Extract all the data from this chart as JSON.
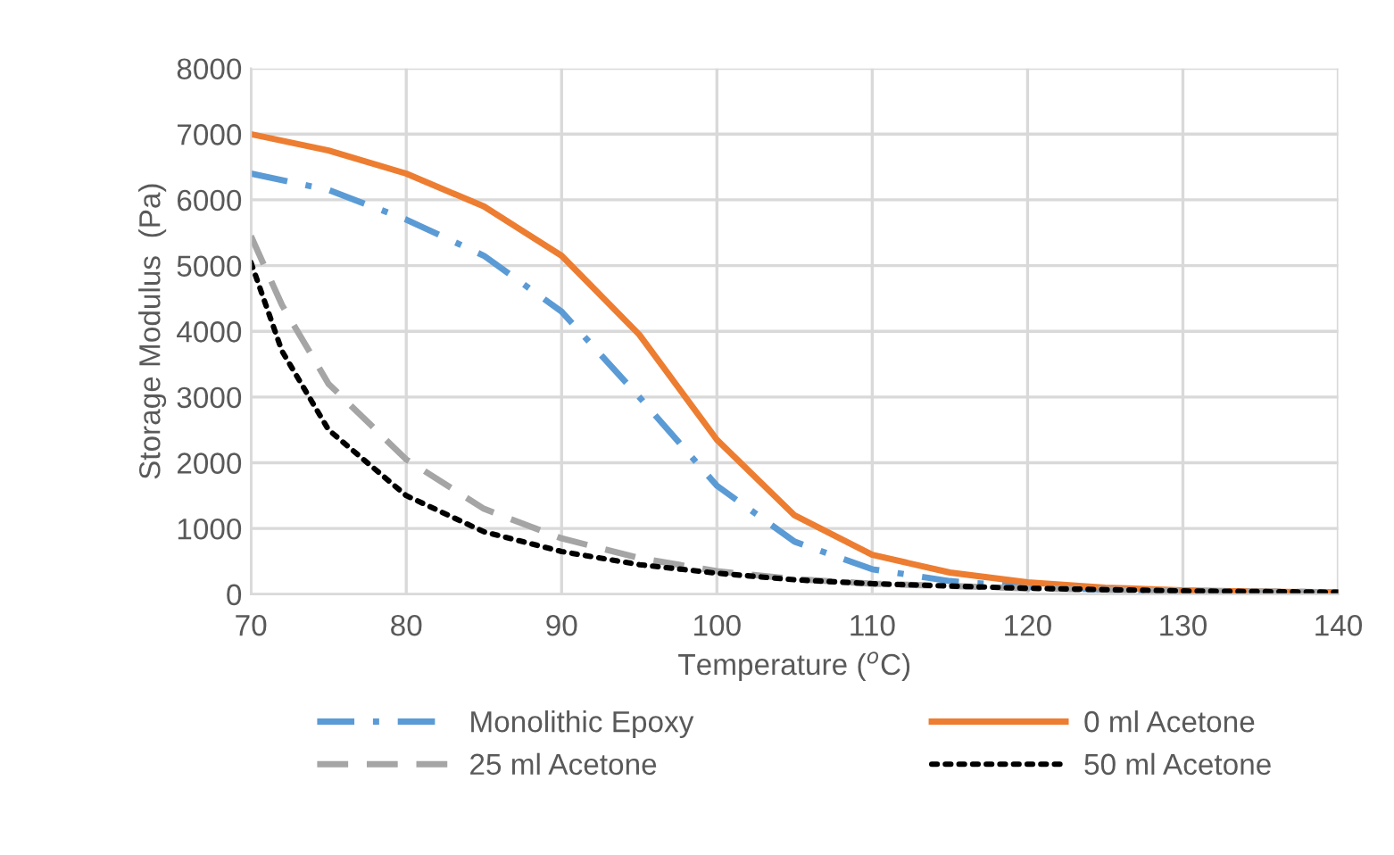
{
  "chart_data": {
    "type": "line",
    "xlabel": "Temperature ($^{o}$C)",
    "ylabel": "Storage Modulus  (Pa)",
    "xlim": [
      70,
      140
    ],
    "xticks": [
      70,
      80,
      90,
      100,
      110,
      120,
      130,
      140
    ],
    "ylim": [
      0,
      8000
    ],
    "yticks": [
      0,
      1000,
      2000,
      3000,
      4000,
      5000,
      6000,
      7000,
      8000
    ],
    "grid": true,
    "legend": "bottom",
    "marker": "none",
    "series": [
      {
        "name": "Monolithic Epoxy",
        "color": "#5b9bd5",
        "line_style": "dashdot",
        "x": [
          70,
          75,
          80,
          85,
          90,
          95,
          100,
          105,
          110,
          115,
          120,
          125,
          130,
          135,
          140
        ],
        "values": [
          6400,
          6150,
          5700,
          5150,
          4300,
          3000,
          1650,
          800,
          380,
          200,
          110,
          70,
          50,
          40,
          30
        ]
      },
      {
        "name": "0 ml Acetone",
        "color": "#ed7d31",
        "line_style": "solid",
        "x": [
          70,
          75,
          80,
          85,
          90,
          95,
          100,
          105,
          110,
          115,
          120,
          125,
          130,
          135,
          140
        ],
        "values": [
          7000,
          6750,
          6400,
          5900,
          5150,
          3950,
          2350,
          1200,
          600,
          330,
          180,
          100,
          60,
          40,
          30
        ]
      },
      {
        "name": "25 ml Acetone",
        "color": "#a5a5a5",
        "line_style": "dashed",
        "x": [
          70,
          72,
          75,
          80,
          85,
          90,
          95,
          100,
          105,
          110,
          120,
          130,
          140
        ],
        "values": [
          5450,
          4400,
          3200,
          2050,
          1300,
          850,
          550,
          350,
          230,
          160,
          90,
          50,
          30
        ]
      },
      {
        "name": "50 ml Acetone",
        "color": "#000000",
        "line_style": "dotted",
        "x": [
          70,
          72,
          75,
          80,
          85,
          90,
          95,
          100,
          105,
          110,
          120,
          130,
          140
        ],
        "values": [
          5050,
          3700,
          2500,
          1500,
          950,
          650,
          450,
          320,
          220,
          160,
          90,
          50,
          30
        ]
      }
    ]
  }
}
